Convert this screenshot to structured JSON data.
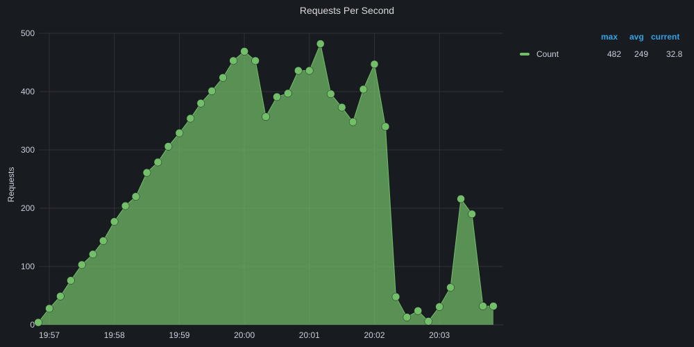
{
  "chart_data": {
    "type": "area",
    "title": "Requests Per Second",
    "ylabel": "Requests",
    "xlabel": "",
    "ylim": [
      0,
      500
    ],
    "yticks": [
      0,
      100,
      200,
      300,
      400,
      500
    ],
    "xticks": [
      {
        "label": "19:57",
        "minutes": 0
      },
      {
        "label": "19:58",
        "minutes": 1
      },
      {
        "label": "19:59",
        "minutes": 2
      },
      {
        "label": "20:00",
        "minutes": 3
      },
      {
        "label": "20:01",
        "minutes": 4
      },
      {
        "label": "20:02",
        "minutes": 5
      },
      {
        "label": "20:03",
        "minutes": 6
      }
    ],
    "xlim": [
      -0.15,
      6.98
    ],
    "grid": true,
    "points_shown": true,
    "legend_position": "right",
    "series": [
      {
        "name": "Count",
        "color": "#73bf69",
        "x": [
          -0.17,
          0.0,
          0.17,
          0.33,
          0.5,
          0.67,
          0.83,
          1.0,
          1.17,
          1.33,
          1.5,
          1.67,
          1.83,
          2.0,
          2.17,
          2.33,
          2.5,
          2.67,
          2.83,
          3.0,
          3.17,
          3.33,
          3.5,
          3.67,
          3.83,
          4.0,
          4.17,
          4.33,
          4.5,
          4.67,
          4.83,
          5.0,
          5.17,
          5.33,
          5.5,
          5.67,
          5.83,
          6.0,
          6.17,
          6.33,
          6.5,
          6.67,
          6.83
        ],
        "values": [
          4,
          28,
          49,
          76,
          103,
          121,
          144,
          177,
          204,
          220,
          261,
          279,
          306,
          329,
          354,
          380,
          401,
          424,
          453,
          469,
          453,
          357,
          391,
          397,
          436,
          436,
          482,
          396,
          373,
          348,
          404,
          447,
          340,
          48,
          13,
          24,
          6,
          31,
          64,
          216,
          190,
          32,
          32
        ]
      }
    ]
  },
  "legend": {
    "headers": {
      "max": "max",
      "avg": "avg",
      "current": "current"
    },
    "rows": [
      {
        "name": "Count",
        "max": "482",
        "avg": "249",
        "current": "32.8",
        "color": "#73bf69"
      }
    ]
  }
}
